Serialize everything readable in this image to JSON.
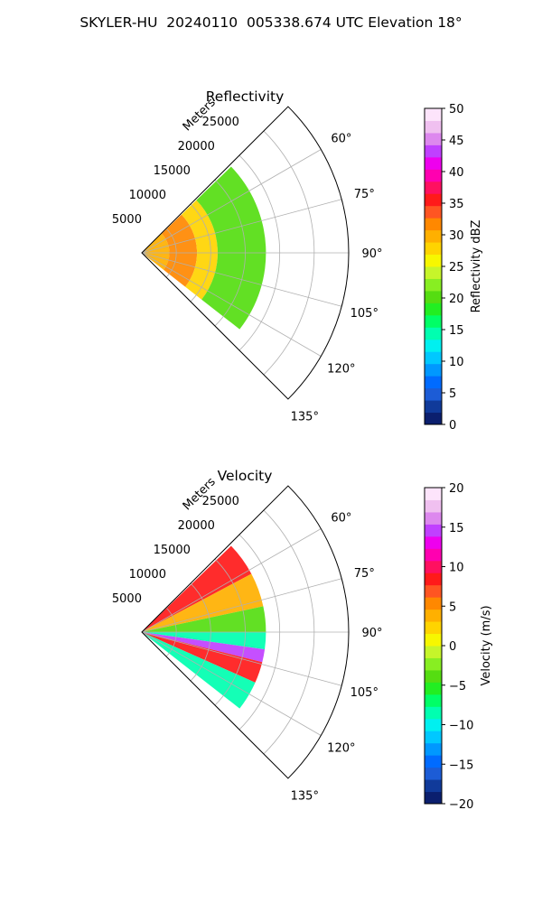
{
  "figure_title": "SKYLER-HU  20240110  005338.674 UTC Elevation 18°",
  "chart_data": [
    {
      "type": "polar-sector",
      "title": "Reflectivity",
      "radial_label": "Meters",
      "radial_ticks": [
        5000,
        10000,
        15000,
        20000,
        25000
      ],
      "radial_tick_labels": [
        "5000",
        "10000",
        "15000",
        "20000",
        "25000"
      ],
      "rlim": [
        0,
        30000
      ],
      "theta_ticks": [
        60,
        75,
        90,
        105,
        120,
        135
      ],
      "theta_tick_labels": [
        "60°",
        "75°",
        "90°",
        "105°",
        "120°",
        "135°"
      ],
      "theta_range": [
        45,
        135
      ],
      "grid": true,
      "colorbar": {
        "label": "Reflectivity dBZ",
        "range": [
          0,
          50
        ],
        "ticks": [
          0,
          5,
          10,
          15,
          20,
          25,
          30,
          35,
          40,
          45,
          50
        ],
        "tick_labels": [
          "0",
          "5",
          "10",
          "15",
          "20",
          "25",
          "30",
          "35",
          "40",
          "45",
          "50"
        ],
        "colors": [
          "#0b1f6e",
          "#103a9a",
          "#1c5cd6",
          "#006bff",
          "#0098ff",
          "#00c8ff",
          "#00f0f0",
          "#00ffb0",
          "#00ff66",
          "#22ee22",
          "#55dd11",
          "#88ee22",
          "#c6f52a",
          "#f7f700",
          "#ffd400",
          "#ffb000",
          "#ff8800",
          "#ff5522",
          "#ff1a1a",
          "#ff1060",
          "#ff00b0",
          "#ee00ee",
          "#c040ff",
          "#dd88ee",
          "#f0c0f0",
          "#fde4fb"
        ]
      },
      "echo_extent": {
        "theta_deg": [
          46,
          128
        ],
        "range_m": [
          0,
          18000
        ]
      },
      "echo_bands": [
        {
          "r_m": [
            0,
            4000
          ],
          "value": 30
        },
        {
          "r_m": [
            4000,
            8000
          ],
          "value": 32
        },
        {
          "r_m": [
            8000,
            11000
          ],
          "value": 27
        },
        {
          "r_m": [
            11000,
            18000
          ],
          "value": 21
        }
      ]
    },
    {
      "type": "polar-sector",
      "title": "Velocity",
      "radial_label": "Meters",
      "radial_ticks": [
        5000,
        10000,
        15000,
        20000,
        25000
      ],
      "radial_tick_labels": [
        "5000",
        "10000",
        "15000",
        "20000",
        "25000"
      ],
      "rlim": [
        0,
        30000
      ],
      "theta_ticks": [
        60,
        75,
        90,
        105,
        120,
        135
      ],
      "theta_tick_labels": [
        "60°",
        "75°",
        "90°",
        "105°",
        "120°",
        "135°"
      ],
      "theta_range": [
        45,
        135
      ],
      "grid": true,
      "colorbar": {
        "label": "Velocity (m/s)",
        "range": [
          -20,
          20
        ],
        "ticks": [
          -20,
          -15,
          -10,
          -5,
          0,
          5,
          10,
          15,
          20
        ],
        "tick_labels": [
          "−20",
          "−15",
          "−10",
          "−5",
          "0",
          "5",
          "10",
          "15",
          "20"
        ],
        "colors": [
          "#0b1f6e",
          "#103a9a",
          "#1c5cd6",
          "#006bff",
          "#0098ff",
          "#00c8ff",
          "#00f0f0",
          "#00ffb0",
          "#00ff66",
          "#22ee22",
          "#55dd11",
          "#88ee22",
          "#c6f52a",
          "#f7f700",
          "#ffd400",
          "#ffb000",
          "#ff8800",
          "#ff5522",
          "#ff1a1a",
          "#ff1060",
          "#ff00b0",
          "#ee00ee",
          "#c040ff",
          "#dd88ee",
          "#f0c0f0",
          "#fde4fb"
        ]
      },
      "echo_extent": {
        "theta_deg": [
          46,
          128
        ],
        "range_m": [
          0,
          18000
        ]
      },
      "echo_wedges": [
        {
          "theta_deg": [
            46,
            62
          ],
          "value": 8
        },
        {
          "theta_deg": [
            62,
            78
          ],
          "value": 4
        },
        {
          "theta_deg": [
            78,
            90
          ],
          "value": -4
        },
        {
          "theta_deg": [
            90,
            98
          ],
          "value": -9
        },
        {
          "theta_deg": [
            98,
            104
          ],
          "value": 14
        },
        {
          "theta_deg": [
            104,
            114
          ],
          "value": 9
        },
        {
          "theta_deg": [
            114,
            128
          ],
          "value": -8
        }
      ]
    }
  ]
}
